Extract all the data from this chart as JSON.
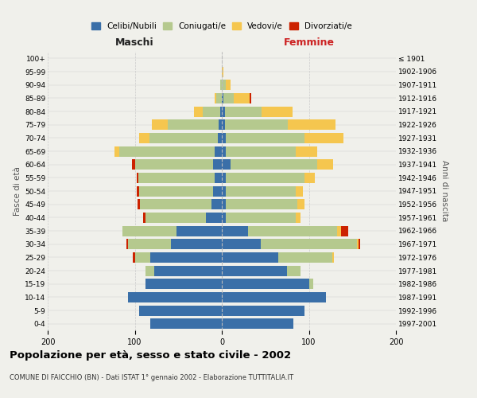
{
  "age_groups": [
    "0-4",
    "5-9",
    "10-14",
    "15-19",
    "20-24",
    "25-29",
    "30-34",
    "35-39",
    "40-44",
    "45-49",
    "50-54",
    "55-59",
    "60-64",
    "65-69",
    "70-74",
    "75-79",
    "80-84",
    "85-89",
    "90-94",
    "95-99",
    "100+"
  ],
  "birth_years": [
    "1997-2001",
    "1992-1996",
    "1987-1991",
    "1982-1986",
    "1977-1981",
    "1972-1976",
    "1967-1971",
    "1962-1966",
    "1957-1961",
    "1952-1956",
    "1947-1951",
    "1942-1946",
    "1937-1941",
    "1932-1936",
    "1927-1931",
    "1922-1926",
    "1917-1921",
    "1912-1916",
    "1907-1911",
    "1902-1906",
    "≤ 1901"
  ],
  "maschi": {
    "celibi": [
      82,
      95,
      108,
      88,
      78,
      82,
      58,
      52,
      18,
      12,
      10,
      8,
      10,
      8,
      5,
      4,
      2,
      0,
      0,
      0,
      0
    ],
    "coniugati": [
      0,
      0,
      0,
      0,
      10,
      18,
      50,
      62,
      70,
      82,
      85,
      88,
      90,
      110,
      78,
      58,
      20,
      6,
      2,
      0,
      0
    ],
    "vedovi": [
      0,
      0,
      0,
      0,
      0,
      0,
      0,
      0,
      0,
      0,
      0,
      0,
      0,
      5,
      12,
      18,
      10,
      2,
      0,
      0,
      0
    ],
    "divorziati": [
      0,
      0,
      0,
      0,
      0,
      2,
      2,
      0,
      2,
      3,
      3,
      2,
      3,
      0,
      0,
      0,
      0,
      0,
      0,
      0,
      0
    ]
  },
  "femmine": {
    "nubili": [
      82,
      95,
      120,
      100,
      75,
      65,
      45,
      30,
      5,
      5,
      5,
      5,
      10,
      5,
      5,
      4,
      4,
      2,
      0,
      0,
      0
    ],
    "coniugate": [
      0,
      0,
      0,
      5,
      15,
      62,
      110,
      102,
      80,
      82,
      80,
      90,
      100,
      80,
      90,
      72,
      42,
      12,
      5,
      0,
      0
    ],
    "vedove": [
      0,
      0,
      0,
      0,
      0,
      2,
      2,
      5,
      5,
      8,
      8,
      12,
      18,
      25,
      45,
      55,
      35,
      18,
      5,
      2,
      0
    ],
    "divorziate": [
      0,
      0,
      0,
      0,
      0,
      0,
      2,
      8,
      0,
      0,
      0,
      0,
      0,
      0,
      0,
      0,
      0,
      2,
      0,
      0,
      0
    ]
  },
  "colors": {
    "celibi_nubili": "#3a6fa8",
    "coniugati": "#b5c98e",
    "vedovi": "#f5c64f",
    "divorziati": "#cc2200"
  },
  "title": "Popolazione per età, sesso e stato civile - 2002",
  "subtitle": "COMUNE DI FAICCHIO (BN) - Dati ISTAT 1° gennaio 2002 - Elaborazione TUTTITALIA.IT",
  "xlabel_left": "Maschi",
  "xlabel_right": "Femmine",
  "ylabel": "Fasce di età",
  "ylabel_right": "Anni di nascita",
  "xlim": 200,
  "bg_color": "#f0f0eb",
  "grid_color": "#cccccc"
}
